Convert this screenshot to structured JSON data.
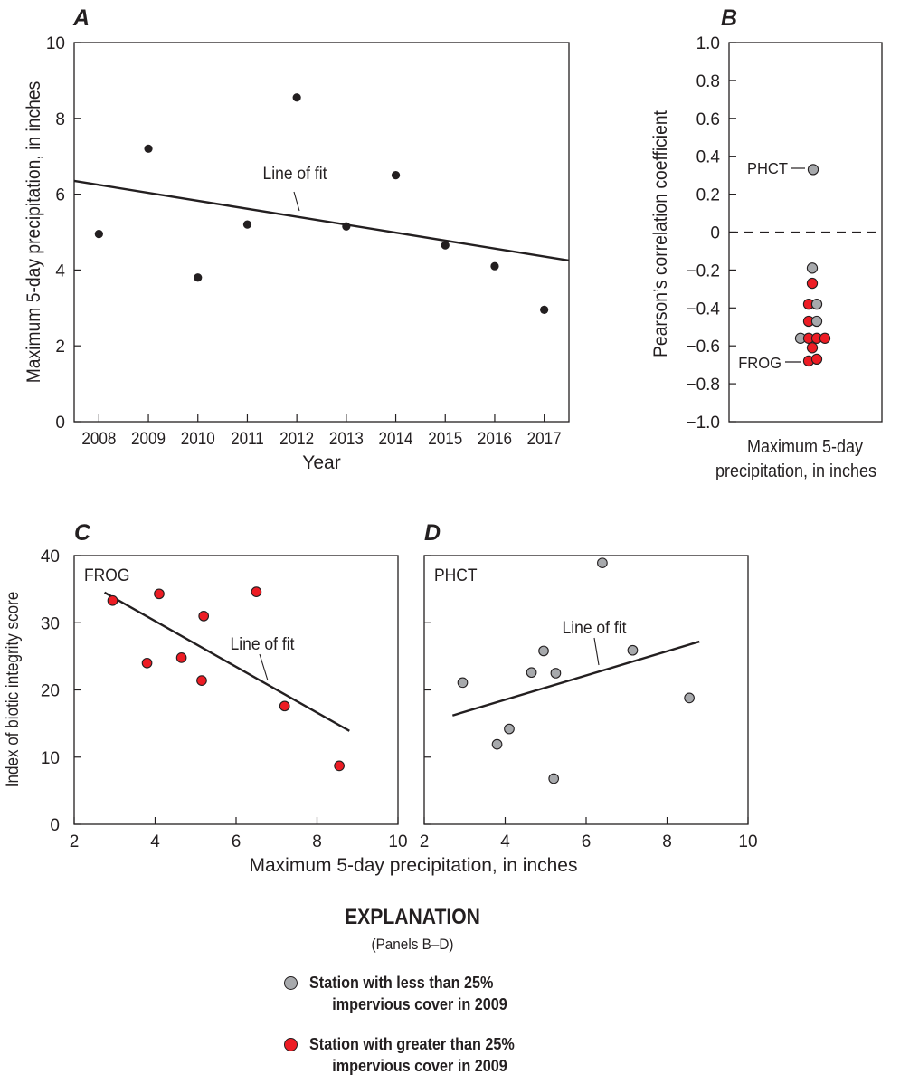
{
  "colors": {
    "ink": "#231f20",
    "gray_marker": "#a7a9ac",
    "red_marker": "#ed1c24",
    "frame": "#231f20"
  },
  "panels": {
    "A": {
      "letter": "A"
    },
    "B": {
      "letter": "B"
    },
    "C": {
      "letter": "C"
    },
    "D": {
      "letter": "D"
    }
  },
  "chart_data": [
    {
      "panel": "A",
      "type": "scatter",
      "xlabel": "Year",
      "ylabel": "Maximum 5-day precipitation, in inches",
      "xlim": [
        2007.5,
        2017.5
      ],
      "ylim": [
        0,
        10
      ],
      "x_ticks": [
        "2008",
        "2009",
        "2010",
        "2011",
        "2012",
        "2013",
        "2014",
        "2015",
        "2016",
        "2017"
      ],
      "y_ticks": [
        "0",
        "2",
        "4",
        "6",
        "8",
        "10"
      ],
      "points": [
        {
          "x": 2008,
          "y": 4.95
        },
        {
          "x": 2009,
          "y": 7.2
        },
        {
          "x": 2010,
          "y": 3.8
        },
        {
          "x": 2011,
          "y": 5.2
        },
        {
          "x": 2012,
          "y": 8.55
        },
        {
          "x": 2013,
          "y": 5.15
        },
        {
          "x": 2014,
          "y": 6.5
        },
        {
          "x": 2015,
          "y": 4.65
        },
        {
          "x": 2016,
          "y": 4.1
        },
        {
          "x": 2017,
          "y": 2.95
        }
      ],
      "fit_line": [
        {
          "x": 2007.5,
          "y": 6.35
        },
        {
          "x": 2017.5,
          "y": 4.25
        }
      ],
      "annotation": "Line of fit"
    },
    {
      "panel": "B",
      "type": "scatter",
      "xlabel": "Maximum 5-day precipitation, in inches",
      "ylabel": "Pearson’s correlation coefficient",
      "ylim": [
        -1.0,
        1.0
      ],
      "y_ticks": [
        "1.0",
        "0.8",
        "0.6",
        "0.4",
        "0.2",
        "0",
        "−0.2",
        "−0.4",
        "−0.6",
        "−0.8",
        "−1.0"
      ],
      "zero_line": "dashed",
      "points": [
        {
          "y": 0.33,
          "group": "gray",
          "label": "PHCT"
        },
        {
          "y": -0.19,
          "group": "gray"
        },
        {
          "y": -0.27,
          "group": "red"
        },
        {
          "y": -0.38,
          "group": "red"
        },
        {
          "y": -0.38,
          "group": "gray"
        },
        {
          "y": -0.47,
          "group": "red"
        },
        {
          "y": -0.47,
          "group": "gray"
        },
        {
          "y": -0.56,
          "group": "gray"
        },
        {
          "y": -0.56,
          "group": "red"
        },
        {
          "y": -0.56,
          "group": "red"
        },
        {
          "y": -0.56,
          "group": "red"
        },
        {
          "y": -0.61,
          "group": "red"
        },
        {
          "y": -0.68,
          "group": "red",
          "label": "FROG"
        },
        {
          "y": -0.67,
          "group": "red"
        }
      ]
    },
    {
      "panel": "C",
      "type": "scatter",
      "inset_label": "FROG",
      "xlim": [
        2,
        10
      ],
      "ylim": [
        0,
        40
      ],
      "x_ticks": [
        "2",
        "4",
        "6",
        "8",
        "10"
      ],
      "y_ticks": [
        "0",
        "10",
        "20",
        "30",
        "40"
      ],
      "ylabel": "Index of biotic integrity score",
      "points": [
        {
          "x": 2.95,
          "y": 33.3
        },
        {
          "x": 3.8,
          "y": 24.0
        },
        {
          "x": 4.1,
          "y": 34.3
        },
        {
          "x": 4.65,
          "y": 24.8
        },
        {
          "x": 5.15,
          "y": 21.4
        },
        {
          "x": 5.2,
          "y": 31.0
        },
        {
          "x": 6.5,
          "y": 34.6
        },
        {
          "x": 7.2,
          "y": 17.6
        },
        {
          "x": 8.55,
          "y": 8.7
        }
      ],
      "fit_line": [
        {
          "x": 2.75,
          "y": 34.5
        },
        {
          "x": 8.8,
          "y": 13.9
        }
      ],
      "annotation": "Line of fit"
    },
    {
      "panel": "D",
      "type": "scatter",
      "inset_label": "PHCT",
      "xlim": [
        2,
        10
      ],
      "ylim": [
        0,
        40
      ],
      "x_ticks": [
        "2",
        "4",
        "6",
        "8",
        "10"
      ],
      "points": [
        {
          "x": 2.95,
          "y": 21.1
        },
        {
          "x": 3.8,
          "y": 11.9
        },
        {
          "x": 4.1,
          "y": 14.2
        },
        {
          "x": 4.65,
          "y": 22.6
        },
        {
          "x": 4.95,
          "y": 25.8
        },
        {
          "x": 5.2,
          "y": 6.8
        },
        {
          "x": 5.25,
          "y": 22.5
        },
        {
          "x": 6.4,
          "y": 38.9
        },
        {
          "x": 7.15,
          "y": 25.9
        },
        {
          "x": 8.55,
          "y": 18.8
        }
      ],
      "fit_line": [
        {
          "x": 2.7,
          "y": 16.2
        },
        {
          "x": 8.8,
          "y": 27.2
        }
      ],
      "annotation": "Line of fit"
    }
  ],
  "shared_xlabel": "Maximum 5-day precipitation, in inches",
  "explanation": {
    "title": "EXPLANATION",
    "subtitle": "(Panels B–D)",
    "items": [
      {
        "line1": "Station with less than 25%",
        "line2": "impervious cover in 2009",
        "color": "#a7a9ac"
      },
      {
        "line1": "Station with greater than 25%",
        "line2": "impervious cover in 2009",
        "color": "#ed1c24"
      }
    ]
  }
}
